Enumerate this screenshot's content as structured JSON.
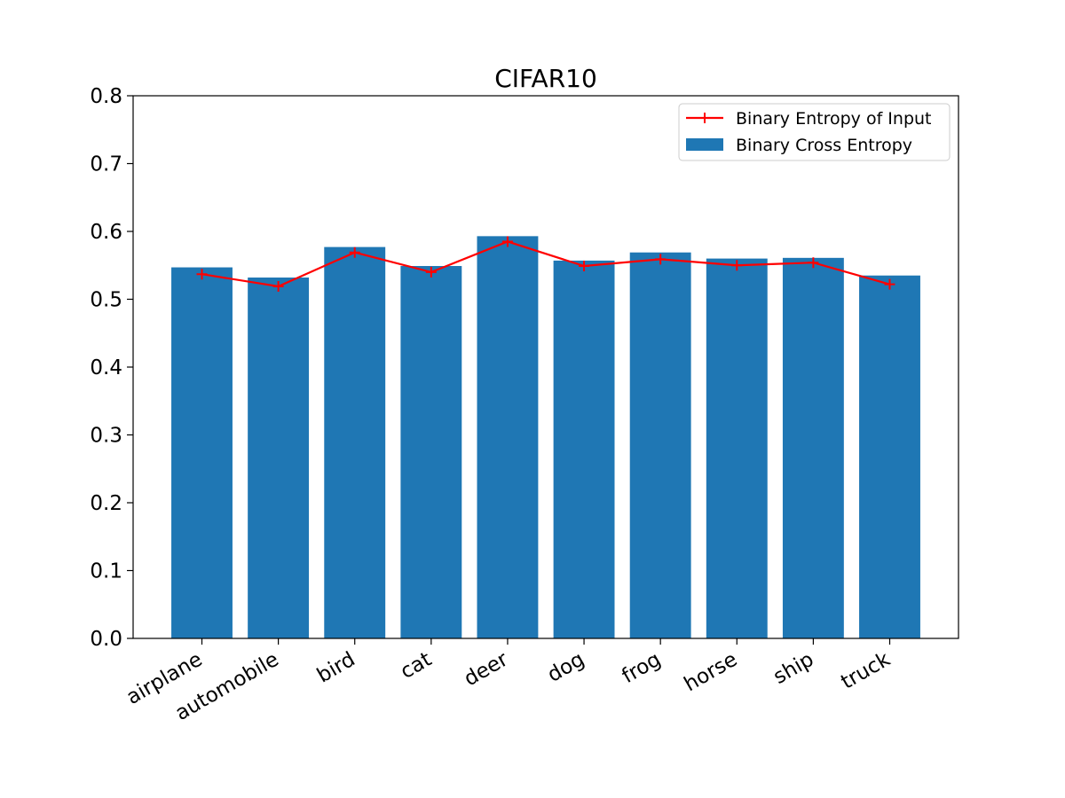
{
  "chart_data": {
    "type": "bar",
    "title": "CIFAR10",
    "categories": [
      "airplane",
      "automobile",
      "bird",
      "cat",
      "deer",
      "dog",
      "frog",
      "horse",
      "ship",
      "truck"
    ],
    "series": [
      {
        "name": "Binary Cross Entropy",
        "kind": "bar",
        "color": "#1f77b4",
        "values": [
          0.547,
          0.532,
          0.577,
          0.549,
          0.593,
          0.557,
          0.569,
          0.56,
          0.561,
          0.535
        ]
      },
      {
        "name": "Binary Entropy of Input",
        "kind": "line",
        "marker": "plus",
        "color": "#ff0000",
        "values": [
          0.537,
          0.519,
          0.569,
          0.54,
          0.585,
          0.549,
          0.559,
          0.55,
          0.554,
          0.522
        ]
      }
    ],
    "ylim": [
      0,
      0.8
    ],
    "yticks": [
      "0.0",
      "0.1",
      "0.2",
      "0.3",
      "0.4",
      "0.5",
      "0.6",
      "0.7",
      "0.8"
    ],
    "grid": false,
    "legend_position": "upper-right"
  }
}
